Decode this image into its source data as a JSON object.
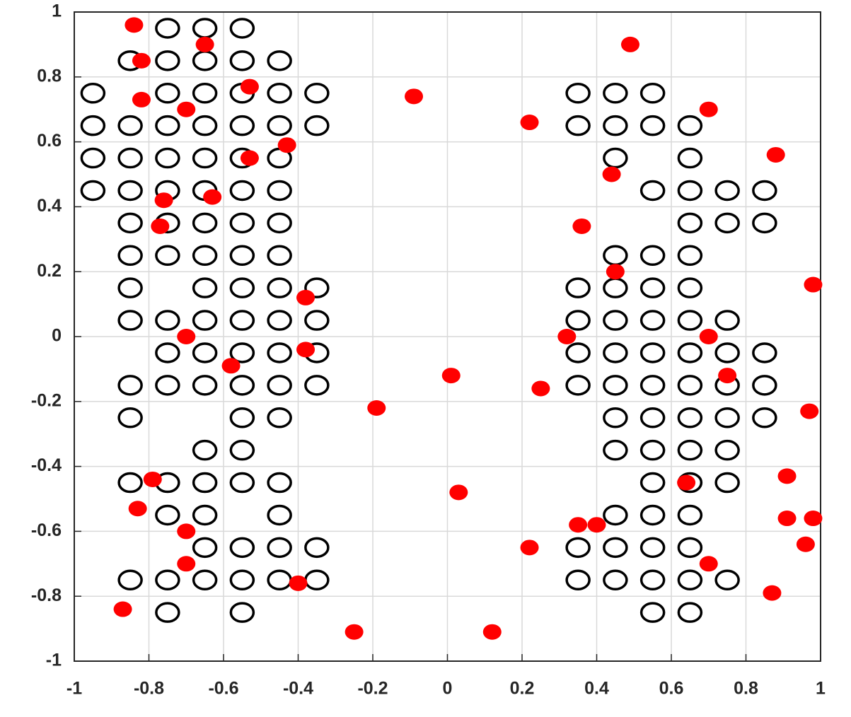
{
  "chart_data": {
    "type": "scatter",
    "xlim": [
      -1,
      1
    ],
    "ylim": [
      -1,
      1
    ],
    "xticks": [
      -1,
      -0.8,
      -0.6,
      -0.4,
      -0.2,
      0,
      0.2,
      0.4,
      0.6,
      0.8,
      1
    ],
    "yticks": [
      -1,
      -0.8,
      -0.6,
      -0.4,
      -0.2,
      0,
      0.2,
      0.4,
      0.6,
      0.8,
      1
    ],
    "grid": true,
    "series": [
      {
        "color": "#000000",
        "marker": "open",
        "x": [
          -0.75,
          -0.65,
          -0.55,
          -0.85,
          -0.75,
          -0.65,
          -0.55,
          -0.45,
          -0.95,
          -0.75,
          -0.65,
          -0.55,
          -0.45,
          -0.35,
          0.35,
          0.45,
          0.55,
          -0.95,
          -0.85,
          -0.75,
          -0.65,
          -0.55,
          -0.45,
          -0.35,
          0.35,
          0.45,
          0.55,
          0.65,
          -0.95,
          -0.85,
          -0.75,
          -0.65,
          -0.55,
          -0.45,
          0.45,
          0.65,
          -0.95,
          -0.85,
          -0.75,
          -0.65,
          -0.55,
          -0.45,
          0.55,
          0.65,
          0.75,
          0.85,
          -0.85,
          -0.75,
          -0.65,
          -0.55,
          -0.45,
          0.65,
          0.75,
          0.85,
          -0.85,
          -0.75,
          -0.65,
          -0.55,
          -0.45,
          0.45,
          0.55,
          0.65,
          -0.85,
          -0.65,
          -0.55,
          -0.45,
          -0.35,
          0.35,
          0.45,
          0.55,
          0.65,
          -0.85,
          -0.75,
          -0.65,
          -0.55,
          -0.45,
          -0.35,
          0.35,
          0.45,
          0.55,
          0.65,
          0.75,
          -0.75,
          -0.65,
          -0.55,
          -0.45,
          -0.35,
          0.35,
          0.45,
          0.55,
          0.65,
          0.75,
          0.85,
          -0.85,
          -0.75,
          -0.65,
          -0.55,
          -0.45,
          -0.35,
          0.35,
          0.45,
          0.55,
          0.65,
          0.75,
          0.85,
          -0.85,
          -0.55,
          -0.45,
          0.45,
          0.55,
          0.65,
          0.75,
          0.85,
          -0.65,
          -0.55,
          0.45,
          0.55,
          0.65,
          0.75,
          -0.85,
          -0.75,
          -0.65,
          -0.55,
          -0.45,
          0.55,
          0.65,
          0.75,
          -0.75,
          -0.65,
          -0.45,
          0.45,
          0.55,
          0.65,
          -0.65,
          -0.55,
          -0.45,
          -0.35,
          0.35,
          0.45,
          0.55,
          0.65,
          -0.85,
          -0.75,
          -0.65,
          -0.55,
          -0.45,
          -0.35,
          0.35,
          0.45,
          0.55,
          0.65,
          0.75,
          -0.75,
          -0.55,
          0.55,
          0.65
        ],
        "values": [
          0.95,
          0.95,
          0.95,
          0.85,
          0.85,
          0.85,
          0.85,
          0.85,
          0.75,
          0.75,
          0.75,
          0.75,
          0.75,
          0.75,
          0.75,
          0.75,
          0.75,
          0.65,
          0.65,
          0.65,
          0.65,
          0.65,
          0.65,
          0.65,
          0.65,
          0.65,
          0.65,
          0.65,
          0.55,
          0.55,
          0.55,
          0.55,
          0.55,
          0.55,
          0.55,
          0.55,
          0.45,
          0.45,
          0.45,
          0.45,
          0.45,
          0.45,
          0.45,
          0.45,
          0.45,
          0.45,
          0.35,
          0.35,
          0.35,
          0.35,
          0.35,
          0.35,
          0.35,
          0.35,
          0.25,
          0.25,
          0.25,
          0.25,
          0.25,
          0.25,
          0.25,
          0.25,
          0.15,
          0.15,
          0.15,
          0.15,
          0.15,
          0.15,
          0.15,
          0.15,
          0.15,
          0.05,
          0.05,
          0.05,
          0.05,
          0.05,
          0.05,
          0.05,
          0.05,
          0.05,
          0.05,
          0.05,
          -0.05,
          -0.05,
          -0.05,
          -0.05,
          -0.05,
          -0.05,
          -0.05,
          -0.05,
          -0.05,
          -0.05,
          -0.05,
          -0.15,
          -0.15,
          -0.15,
          -0.15,
          -0.15,
          -0.15,
          -0.15,
          -0.15,
          -0.15,
          -0.15,
          -0.15,
          -0.15,
          -0.25,
          -0.25,
          -0.25,
          -0.25,
          -0.25,
          -0.25,
          -0.25,
          -0.25,
          -0.35,
          -0.35,
          -0.35,
          -0.35,
          -0.35,
          -0.35,
          -0.45,
          -0.45,
          -0.45,
          -0.45,
          -0.45,
          -0.45,
          -0.45,
          -0.45,
          -0.55,
          -0.55,
          -0.55,
          -0.55,
          -0.55,
          -0.55,
          -0.65,
          -0.65,
          -0.65,
          -0.65,
          -0.65,
          -0.65,
          -0.65,
          -0.65,
          -0.75,
          -0.75,
          -0.75,
          -0.75,
          -0.75,
          -0.75,
          -0.75,
          -0.75,
          -0.75,
          -0.75,
          -0.75,
          -0.85,
          -0.85,
          -0.85,
          -0.85
        ]
      },
      {
        "color": "#ff0000",
        "marker": "filled",
        "x": [
          -0.84,
          -0.65,
          -0.82,
          -0.53,
          -0.82,
          -0.7,
          -0.09,
          0.49,
          0.22,
          0.7,
          0.88,
          -0.43,
          -0.53,
          0.44,
          -0.76,
          -0.63,
          -0.77,
          0.36,
          0.45,
          0.98,
          -0.38,
          -0.7,
          0.32,
          0.7,
          -0.38,
          -0.58,
          0.01,
          0.75,
          0.25,
          -0.19,
          0.97,
          -0.79,
          0.64,
          0.91,
          0.03,
          -0.83,
          -0.7,
          0.35,
          0.4,
          0.91,
          0.98,
          0.22,
          0.96,
          -0.7,
          0.7,
          -0.4,
          0.87,
          -0.87,
          -0.25,
          0.12
        ],
        "values": [
          0.96,
          0.9,
          0.85,
          0.77,
          0.73,
          0.7,
          0.74,
          0.9,
          0.66,
          0.7,
          0.56,
          0.59,
          0.55,
          0.5,
          0.42,
          0.43,
          0.34,
          0.34,
          0.2,
          0.16,
          0.12,
          0.0,
          0.0,
          0.0,
          -0.04,
          -0.09,
          -0.12,
          -0.12,
          -0.16,
          -0.22,
          -0.23,
          -0.44,
          -0.45,
          -0.43,
          -0.48,
          -0.53,
          -0.6,
          -0.58,
          -0.58,
          -0.56,
          -0.56,
          -0.65,
          -0.64,
          -0.7,
          -0.7,
          -0.76,
          -0.79,
          -0.84,
          -0.91,
          -0.91
        ]
      }
    ]
  }
}
